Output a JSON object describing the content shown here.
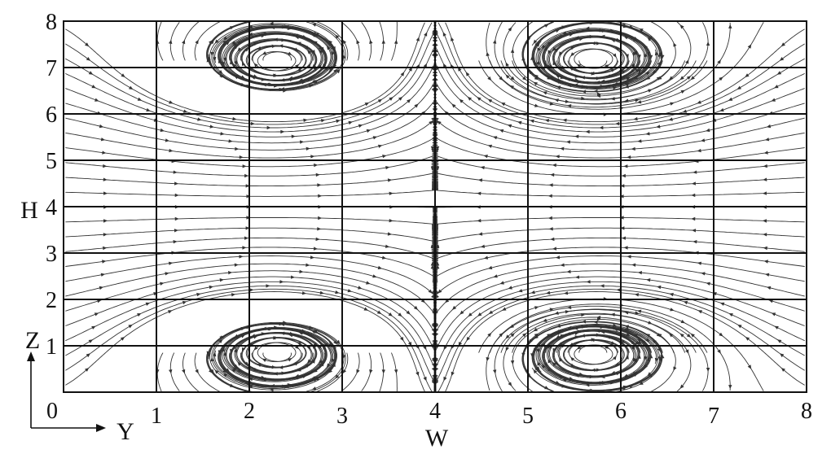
{
  "chart_data": {
    "type": "streamline",
    "title": "",
    "xlabel": "W",
    "ylabel": "H",
    "x_ticks": [
      "0",
      "1",
      "2",
      "3",
      "4",
      "5",
      "6",
      "7",
      "8"
    ],
    "y_ticks": [
      "1",
      "2",
      "3",
      "4",
      "5",
      "6",
      "7",
      "8"
    ],
    "xlim": [
      0,
      8
    ],
    "ylim": [
      0,
      8
    ],
    "grid": true,
    "vortex_centers": [
      {
        "x": 2.3,
        "y": 7.15
      },
      {
        "x": 5.7,
        "y": 7.15
      },
      {
        "x": 2.3,
        "y": 0.85
      },
      {
        "x": 5.7,
        "y": 0.85
      }
    ],
    "inset_axes": {
      "vertical": "Z",
      "horizontal": "Y"
    }
  }
}
